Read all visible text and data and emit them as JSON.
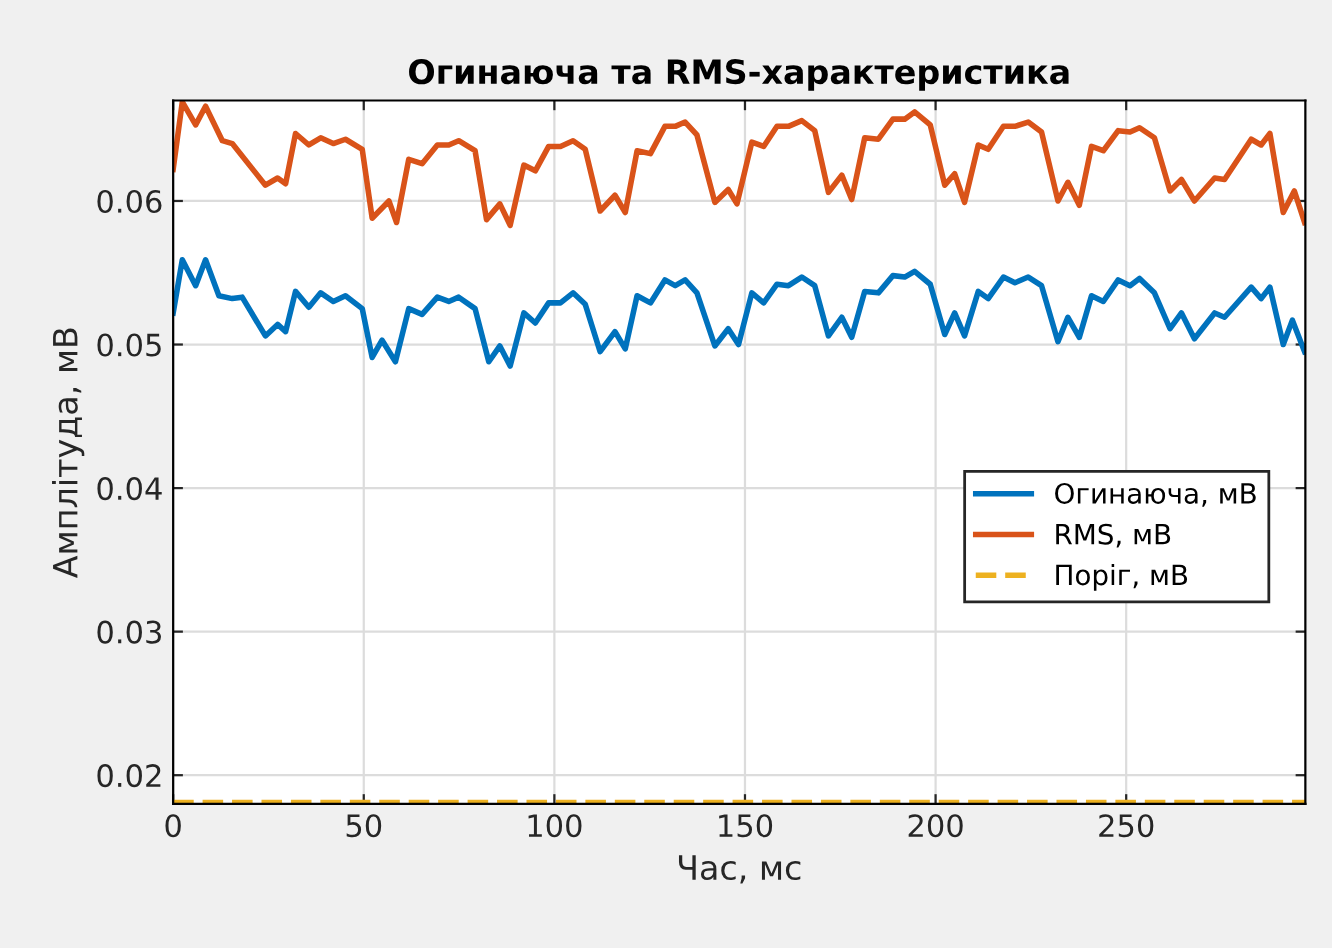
{
  "chart_data": {
    "type": "line",
    "title": "Огинаюча та RMS-характеристика",
    "xlabel": "Час, мс",
    "ylabel": "Амплітуда, мВ",
    "xlim": [
      0,
      297
    ],
    "ylim": [
      0.018,
      0.067
    ],
    "xticks": [
      0,
      50,
      100,
      150,
      200,
      250
    ],
    "yticks": [
      0.02,
      0.03,
      0.04,
      0.05,
      0.06
    ],
    "grid": true,
    "legend": "center right",
    "line_style": "solid",
    "marker": "none",
    "series": [
      {
        "name": "Огинаюча, мВ",
        "color": "#0072bd",
        "x": [
          0,
          2.4,
          5.9,
          8.5,
          12.0,
          15.5,
          18.1,
          24.2,
          27.4,
          29.5,
          32.1,
          35.6,
          38.7,
          42.0,
          45.2,
          49.6,
          52.2,
          54.8,
          58.3,
          61.8,
          65.3,
          69.3,
          72.3,
          74.9,
          79.2,
          82.8,
          85.7,
          88.4,
          92.0,
          95.0,
          98.5,
          101.6,
          104.9,
          108.1,
          112.0,
          115.9,
          118.6,
          121.7,
          125.2,
          129.0,
          131.7,
          134.3,
          137.4,
          142.1,
          145.6,
          148.3,
          151.8,
          154.9,
          158.4,
          161.4,
          164.9,
          168.3,
          171.9,
          175.4,
          178.0,
          181.4,
          185.0,
          188.8,
          191.9,
          194.5,
          198.6,
          202.4,
          205.0,
          207.6,
          211.2,
          213.8,
          217.8,
          220.8,
          224.3,
          227.8,
          232.1,
          234.7,
          237.7,
          240.9,
          244.0,
          247.9,
          251.0,
          253.5,
          257.4,
          261.5,
          264.5,
          267.9,
          273.2,
          275.8,
          282.8,
          285.4,
          287.7,
          291.2,
          293.6,
          296.8
        ],
        "values": [
          0.0522,
          0.0559,
          0.0541,
          0.0559,
          0.0534,
          0.0532,
          0.0533,
          0.0506,
          0.0514,
          0.0509,
          0.0537,
          0.0526,
          0.0536,
          0.053,
          0.0534,
          0.0525,
          0.0491,
          0.0503,
          0.0488,
          0.0525,
          0.0521,
          0.0533,
          0.053,
          0.0533,
          0.0525,
          0.0488,
          0.0499,
          0.0485,
          0.0522,
          0.0515,
          0.0529,
          0.0529,
          0.0536,
          0.0528,
          0.0495,
          0.0509,
          0.0497,
          0.0534,
          0.0529,
          0.0545,
          0.0541,
          0.0545,
          0.0536,
          0.0499,
          0.0511,
          0.05,
          0.0536,
          0.0529,
          0.0542,
          0.0541,
          0.0547,
          0.0541,
          0.0506,
          0.0519,
          0.0505,
          0.0537,
          0.0536,
          0.0548,
          0.0547,
          0.0551,
          0.0542,
          0.0507,
          0.0522,
          0.0506,
          0.0537,
          0.0532,
          0.0547,
          0.0543,
          0.0547,
          0.0541,
          0.0502,
          0.0519,
          0.0505,
          0.0534,
          0.053,
          0.0545,
          0.0541,
          0.0546,
          0.0536,
          0.0511,
          0.0522,
          0.0504,
          0.0522,
          0.0519,
          0.054,
          0.0532,
          0.054,
          0.05,
          0.0517,
          0.0495
        ]
      },
      {
        "name": "RMS, мВ",
        "color": "#d95319",
        "x": [
          0,
          2.4,
          5.9,
          8.5,
          12.9,
          15.5,
          24.2,
          27.4,
          29.5,
          32.1,
          35.6,
          38.7,
          42.0,
          45.2,
          49.6,
          52.2,
          56.6,
          58.6,
          61.8,
          65.3,
          69.3,
          72.3,
          74.9,
          79.2,
          82.2,
          85.7,
          88.4,
          92.0,
          95.0,
          98.5,
          101.6,
          104.9,
          108.1,
          112.0,
          115.9,
          118.6,
          121.7,
          125.2,
          129.0,
          131.7,
          134.3,
          137.4,
          142.1,
          145.6,
          147.9,
          151.8,
          154.9,
          158.4,
          161.4,
          164.9,
          168.3,
          171.9,
          175.4,
          178.0,
          181.4,
          185.0,
          188.8,
          191.9,
          194.5,
          198.6,
          202.4,
          205.0,
          207.6,
          211.2,
          213.8,
          217.8,
          220.8,
          224.3,
          227.8,
          232.1,
          234.7,
          237.7,
          240.9,
          244.0,
          247.9,
          251.0,
          253.5,
          257.4,
          261.5,
          264.5,
          267.9,
          273.2,
          275.8,
          282.8,
          285.4,
          287.7,
          291.2,
          294.1,
          296.8
        ],
        "values": [
          0.0622,
          0.0669,
          0.0653,
          0.0666,
          0.0642,
          0.064,
          0.0611,
          0.0616,
          0.0612,
          0.0647,
          0.0639,
          0.0644,
          0.064,
          0.0643,
          0.0636,
          0.0588,
          0.06,
          0.0585,
          0.0629,
          0.0626,
          0.0639,
          0.0639,
          0.0642,
          0.0635,
          0.0587,
          0.0598,
          0.0583,
          0.0625,
          0.0621,
          0.0638,
          0.0638,
          0.0642,
          0.0636,
          0.0593,
          0.0604,
          0.0592,
          0.0635,
          0.0633,
          0.0652,
          0.0652,
          0.0655,
          0.0646,
          0.0599,
          0.0608,
          0.0598,
          0.0641,
          0.0638,
          0.0652,
          0.0652,
          0.0656,
          0.0649,
          0.0606,
          0.0618,
          0.0601,
          0.0644,
          0.0643,
          0.0657,
          0.0657,
          0.0662,
          0.0653,
          0.0611,
          0.0619,
          0.0599,
          0.0639,
          0.0636,
          0.0652,
          0.0652,
          0.0655,
          0.0648,
          0.06,
          0.0613,
          0.0597,
          0.0638,
          0.0635,
          0.0649,
          0.0648,
          0.0651,
          0.0644,
          0.0607,
          0.0615,
          0.06,
          0.0616,
          0.0615,
          0.0643,
          0.0639,
          0.0647,
          0.0592,
          0.0607,
          0.0585
        ]
      },
      {
        "name": "Поріг, мВ",
        "color": "#edb120",
        "line_style": "dashed",
        "x": [
          0,
          297
        ],
        "values": [
          0.0181,
          0.0181
        ]
      }
    ]
  }
}
